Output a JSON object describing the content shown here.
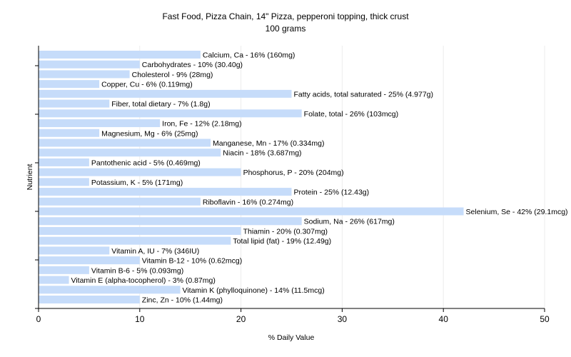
{
  "chart_data": {
    "type": "bar",
    "orientation": "horizontal",
    "title": "Fast Food, Pizza Chain, 14\" Pizza, pepperoni topping, thick crust",
    "subtitle": "100 grams",
    "xlabel": "% Daily Value",
    "ylabel": "Nutrient",
    "xlim": [
      0,
      50
    ],
    "xticks": [
      0,
      10,
      20,
      30,
      40,
      50
    ],
    "grid": true,
    "bar_color": "#c6dcfa",
    "categories": [
      "Calcium, Ca",
      "Carbohydrates",
      "Cholesterol",
      "Copper, Cu",
      "Fatty acids, total saturated",
      "Fiber, total dietary",
      "Folate, total",
      "Iron, Fe",
      "Magnesium, Mg",
      "Manganese, Mn",
      "Niacin",
      "Pantothenic acid",
      "Phosphorus, P",
      "Potassium, K",
      "Protein",
      "Riboflavin",
      "Selenium, Se",
      "Sodium, Na",
      "Thiamin",
      "Total lipid (fat)",
      "Vitamin A, IU",
      "Vitamin B-12",
      "Vitamin B-6",
      "Vitamin E (alpha-tocopherol)",
      "Vitamin K (phylloquinone)",
      "Zinc, Zn"
    ],
    "values": [
      16,
      10,
      9,
      6,
      25,
      7,
      26,
      12,
      6,
      17,
      18,
      5,
      20,
      5,
      25,
      16,
      42,
      26,
      20,
      19,
      7,
      10,
      5,
      3,
      14,
      10
    ],
    "labels": [
      "Calcium, Ca - 16% (160mg)",
      "Carbohydrates - 10% (30.40g)",
      "Cholesterol - 9% (28mg)",
      "Copper, Cu - 6% (0.119mg)",
      "Fatty acids, total saturated - 25% (4.977g)",
      "Fiber, total dietary - 7% (1.8g)",
      "Folate, total - 26% (103mcg)",
      "Iron, Fe - 12% (2.18mg)",
      "Magnesium, Mg - 6% (25mg)",
      "Manganese, Mn - 17% (0.334mg)",
      "Niacin - 18% (3.687mg)",
      "Pantothenic acid - 5% (0.469mg)",
      "Phosphorus, P - 20% (204mg)",
      "Potassium, K - 5% (171mg)",
      "Protein - 25% (12.43g)",
      "Riboflavin - 16% (0.274mg)",
      "Selenium, Se - 42% (29.1mcg)",
      "Sodium, Na - 26% (617mg)",
      "Thiamin - 20% (0.307mg)",
      "Total lipid (fat) - 19% (12.49g)",
      "Vitamin A, IU - 7% (346IU)",
      "Vitamin B-12 - 10% (0.62mcg)",
      "Vitamin B-6 - 5% (0.093mg)",
      "Vitamin E (alpha-tocopherol) - 3% (0.87mg)",
      "Vitamin K (phylloquinone) - 14% (11.5mcg)",
      "Zinc, Zn - 10% (1.44mg)"
    ]
  }
}
